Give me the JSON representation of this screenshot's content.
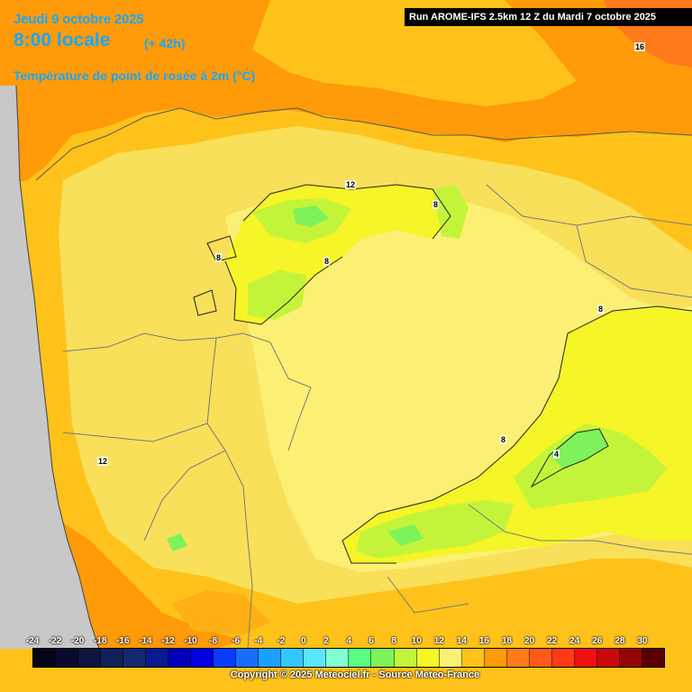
{
  "header": {
    "date": "Jeudi 9 octobre 2025",
    "time": "8:00 locale",
    "lead": "(+ 42h)",
    "parameter": "Température de point de rosée à 2m (°C)",
    "run": "Run AROME-IFS 2.5km 12 Z du Mardi 7 octobre 2025"
  },
  "colors": {
    "sea": "#c8c8c8",
    "band_2_4": "#7df25a",
    "band_4_6": "#c4f43a",
    "band_6_8": "#f5f528",
    "band_8_10": "#fbf074",
    "band_10_12": "#f8e05a",
    "band_12_14": "#ffc21a",
    "band_14_16": "#ff9a08",
    "band_16_18": "#ff7a1a"
  },
  "contour_labels": [
    "16",
    "12",
    "8",
    "8",
    "8",
    "8",
    "8",
    "12",
    "4"
  ],
  "legend": {
    "ticks": [
      "-24",
      "-22",
      "-20",
      "-18",
      "-16",
      "-14",
      "-12",
      "-10",
      "-8",
      "-6",
      "-4",
      "-2",
      "0",
      "2",
      "4",
      "6",
      "8",
      "10",
      "12",
      "14",
      "16",
      "18",
      "20",
      "22",
      "24",
      "26",
      "28",
      "30"
    ],
    "colors": [
      "#05051a",
      "#0a0a2e",
      "#0d1440",
      "#102058",
      "#132a70",
      "#0a1a90",
      "#0000b8",
      "#0000e0",
      "#0a3cff",
      "#1a6eff",
      "#1aa0ff",
      "#32c8ff",
      "#5ae6ff",
      "#82ffd2",
      "#5aff82",
      "#7df25a",
      "#c4f43a",
      "#f5f528",
      "#fbf074",
      "#ffc21a",
      "#ff9a08",
      "#ff7a1a",
      "#ff5a1a",
      "#ff3a14",
      "#f01010",
      "#c80a0a",
      "#960505",
      "#5a0000"
    ]
  },
  "copyright": "Copyright © 2025 Meteociel.fr - Source Meteo-France"
}
